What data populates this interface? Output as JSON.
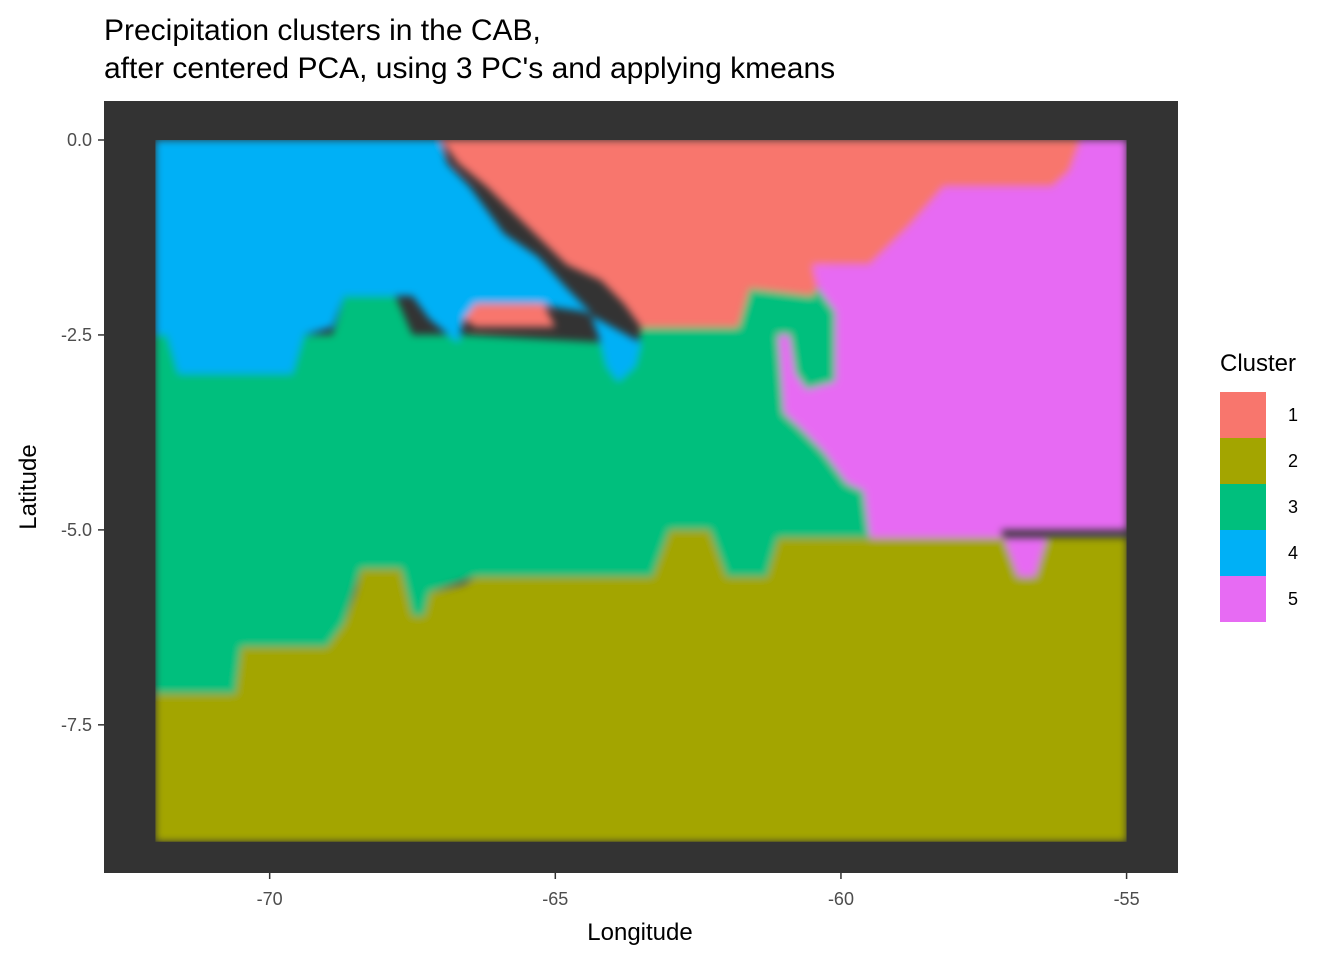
{
  "chart_data": {
    "type": "heatmap",
    "title_line1": "Precipitation clusters in the CAB,",
    "title_line2": "after centered PCA, using 3 PC's and applying kmeans",
    "xlabel": "Longitude",
    "ylabel": "Latitude",
    "xlim": [
      -72.9,
      -54.1
    ],
    "ylim": [
      -9.4,
      0.5
    ],
    "x_ticks": [
      -70,
      -65,
      -60,
      -55
    ],
    "x_tick_labels": [
      "-70",
      "-65",
      "-60",
      "-55"
    ],
    "y_ticks": [
      0,
      -2.5,
      -5,
      -7.5
    ],
    "y_tick_labels": [
      "0.0",
      "-2.5",
      "-5.0",
      "-7.5"
    ],
    "panel_background": "#333333",
    "grid": false,
    "legend": {
      "title": "Cluster",
      "position": "right",
      "entries": [
        {
          "label": "1",
          "color": "#F8766D"
        },
        {
          "label": "2",
          "color": "#A3A500"
        },
        {
          "label": "3",
          "color": "#00BF7D"
        },
        {
          "label": "4",
          "color": "#00B0F6"
        },
        {
          "label": "5",
          "color": "#E76BF3"
        }
      ]
    },
    "grid_extent": {
      "lon_min": -72,
      "lon_max": -55,
      "lat_min": -9,
      "lat_max": 0
    },
    "regions": [
      {
        "cluster": "2",
        "polygon": [
          [
            -72,
            -9
          ],
          [
            -55,
            -9
          ],
          [
            -55,
            -5.1
          ],
          [
            -56.4,
            -5.1
          ],
          [
            -56.6,
            -5.6
          ],
          [
            -56.9,
            -5.6
          ],
          [
            -57.2,
            -5.0
          ],
          [
            -59.6,
            -5.1
          ],
          [
            -61.1,
            -5.1
          ],
          [
            -61.3,
            -5.6
          ],
          [
            -62.0,
            -5.6
          ],
          [
            -62.3,
            -5.0
          ],
          [
            -63.0,
            -5.0
          ],
          [
            -63.3,
            -5.6
          ],
          [
            -66.4,
            -5.6
          ],
          [
            -66.6,
            -5.7
          ],
          [
            -67.2,
            -5.8
          ],
          [
            -67.3,
            -6.1
          ],
          [
            -67.5,
            -6.1
          ],
          [
            -67.7,
            -5.5
          ],
          [
            -68.4,
            -5.5
          ],
          [
            -68.5,
            -5.8
          ],
          [
            -68.7,
            -6.2
          ],
          [
            -69.0,
            -6.5
          ],
          [
            -70.5,
            -6.5
          ],
          [
            -70.6,
            -7.1
          ],
          [
            -72,
            -7.1
          ]
        ]
      },
      {
        "cluster": "3",
        "polygon": [
          [
            -72,
            -2.5
          ],
          [
            -71.8,
            -2.5
          ],
          [
            -71.6,
            -3.0
          ],
          [
            -69.6,
            -3.0
          ],
          [
            -69.4,
            -2.5
          ],
          [
            -68.9,
            -2.5
          ],
          [
            -68.7,
            -2.0
          ],
          [
            -67.8,
            -2.0
          ],
          [
            -67.5,
            -2.5
          ],
          [
            -66.6,
            -2.5
          ],
          [
            -64.1,
            -2.6
          ],
          [
            -64.0,
            -2.9
          ],
          [
            -63.6,
            -2.9
          ],
          [
            -63.5,
            -2.4
          ],
          [
            -61.8,
            -2.4
          ],
          [
            -61.6,
            -1.9
          ],
          [
            -60.4,
            -1.9
          ],
          [
            -60.1,
            -2.2
          ],
          [
            -60.1,
            -3.1
          ],
          [
            -60.6,
            -3.2
          ],
          [
            -60.8,
            -3.0
          ],
          [
            -60.9,
            -2.5
          ],
          [
            -61.1,
            -2.5
          ],
          [
            -61.0,
            -3.5
          ],
          [
            -60.7,
            -3.7
          ],
          [
            -60.3,
            -4.0
          ],
          [
            -59.9,
            -4.4
          ],
          [
            -59.6,
            -4.5
          ],
          [
            -59.5,
            -5.1
          ],
          [
            -61.1,
            -5.1
          ],
          [
            -61.3,
            -5.6
          ],
          [
            -62.0,
            -5.6
          ],
          [
            -62.3,
            -5.0
          ],
          [
            -63.0,
            -5.0
          ],
          [
            -63.3,
            -5.6
          ],
          [
            -66.4,
            -5.6
          ],
          [
            -67.2,
            -5.8
          ],
          [
            -67.3,
            -6.1
          ],
          [
            -67.5,
            -6.1
          ],
          [
            -67.7,
            -5.5
          ],
          [
            -68.4,
            -5.5
          ],
          [
            -68.7,
            -6.2
          ],
          [
            -69.0,
            -6.5
          ],
          [
            -70.5,
            -6.5
          ],
          [
            -70.6,
            -7.1
          ],
          [
            -72,
            -7.1
          ]
        ]
      },
      {
        "cluster": "4",
        "polygon": [
          [
            -72,
            0
          ],
          [
            -67.0,
            0
          ],
          [
            -66.9,
            -0.3
          ],
          [
            -66.5,
            -0.6
          ],
          [
            -65.9,
            -1.2
          ],
          [
            -65.3,
            -1.5
          ],
          [
            -64.8,
            -1.9
          ],
          [
            -64.4,
            -2.2
          ],
          [
            -64.2,
            -2.6
          ],
          [
            -64.1,
            -2.9
          ],
          [
            -63.9,
            -3.1
          ],
          [
            -63.6,
            -2.9
          ],
          [
            -63.5,
            -2.6
          ],
          [
            -64.5,
            -2.2
          ],
          [
            -65.4,
            -2.1
          ],
          [
            -66.3,
            -2.1
          ],
          [
            -66.6,
            -2.3
          ],
          [
            -66.7,
            -2.6
          ],
          [
            -67.2,
            -2.3
          ],
          [
            -67.5,
            -2.0
          ],
          [
            -67.8,
            -2.0
          ],
          [
            -68.2,
            -2.0
          ],
          [
            -68.7,
            -2.0
          ],
          [
            -68.9,
            -2.4
          ],
          [
            -69.4,
            -2.5
          ],
          [
            -69.6,
            -3.0
          ],
          [
            -71.6,
            -3.0
          ],
          [
            -71.8,
            -2.5
          ],
          [
            -72,
            -2.5
          ]
        ]
      },
      {
        "cluster": "1",
        "polygon": [
          [
            -67.0,
            0
          ],
          [
            -55.8,
            0
          ],
          [
            -56.0,
            -0.4
          ],
          [
            -56.3,
            -0.6
          ],
          [
            -58.2,
            -0.6
          ],
          [
            -58.8,
            -1.1
          ],
          [
            -59.5,
            -1.6
          ],
          [
            -60.2,
            -1.6
          ],
          [
            -60.5,
            -2.0
          ],
          [
            -61.6,
            -1.9
          ],
          [
            -61.8,
            -2.4
          ],
          [
            -63.5,
            -2.4
          ],
          [
            -63.8,
            -2.1
          ],
          [
            -64.2,
            -1.8
          ],
          [
            -64.8,
            -1.6
          ],
          [
            -65.5,
            -1.1
          ],
          [
            -66.2,
            -0.6
          ],
          [
            -66.7,
            -0.3
          ]
        ]
      },
      {
        "cluster": "1",
        "polygon": [
          [
            -66.4,
            -2.1
          ],
          [
            -65.2,
            -2.1
          ],
          [
            -65.0,
            -2.4
          ],
          [
            -66.4,
            -2.4
          ],
          [
            -66.6,
            -2.3
          ]
        ]
      },
      {
        "cluster": "5",
        "polygon": [
          [
            -55.8,
            0
          ],
          [
            -55,
            0
          ],
          [
            -55,
            -5.0
          ],
          [
            -57.2,
            -5.0
          ],
          [
            -56.9,
            -5.6
          ],
          [
            -56.6,
            -5.6
          ],
          [
            -56.4,
            -5.1
          ],
          [
            -59.5,
            -5.1
          ],
          [
            -59.6,
            -4.5
          ],
          [
            -59.9,
            -4.4
          ],
          [
            -60.3,
            -4.0
          ],
          [
            -60.7,
            -3.7
          ],
          [
            -61.0,
            -3.5
          ],
          [
            -61.1,
            -2.5
          ],
          [
            -60.9,
            -2.5
          ],
          [
            -60.8,
            -3.0
          ],
          [
            -60.6,
            -3.2
          ],
          [
            -60.1,
            -3.1
          ],
          [
            -60.1,
            -2.2
          ],
          [
            -60.4,
            -1.9
          ],
          [
            -60.5,
            -1.6
          ],
          [
            -59.5,
            -1.6
          ],
          [
            -58.8,
            -1.1
          ],
          [
            -58.2,
            -0.6
          ],
          [
            -56.3,
            -0.6
          ],
          [
            -56.0,
            -0.4
          ]
        ]
      }
    ]
  }
}
